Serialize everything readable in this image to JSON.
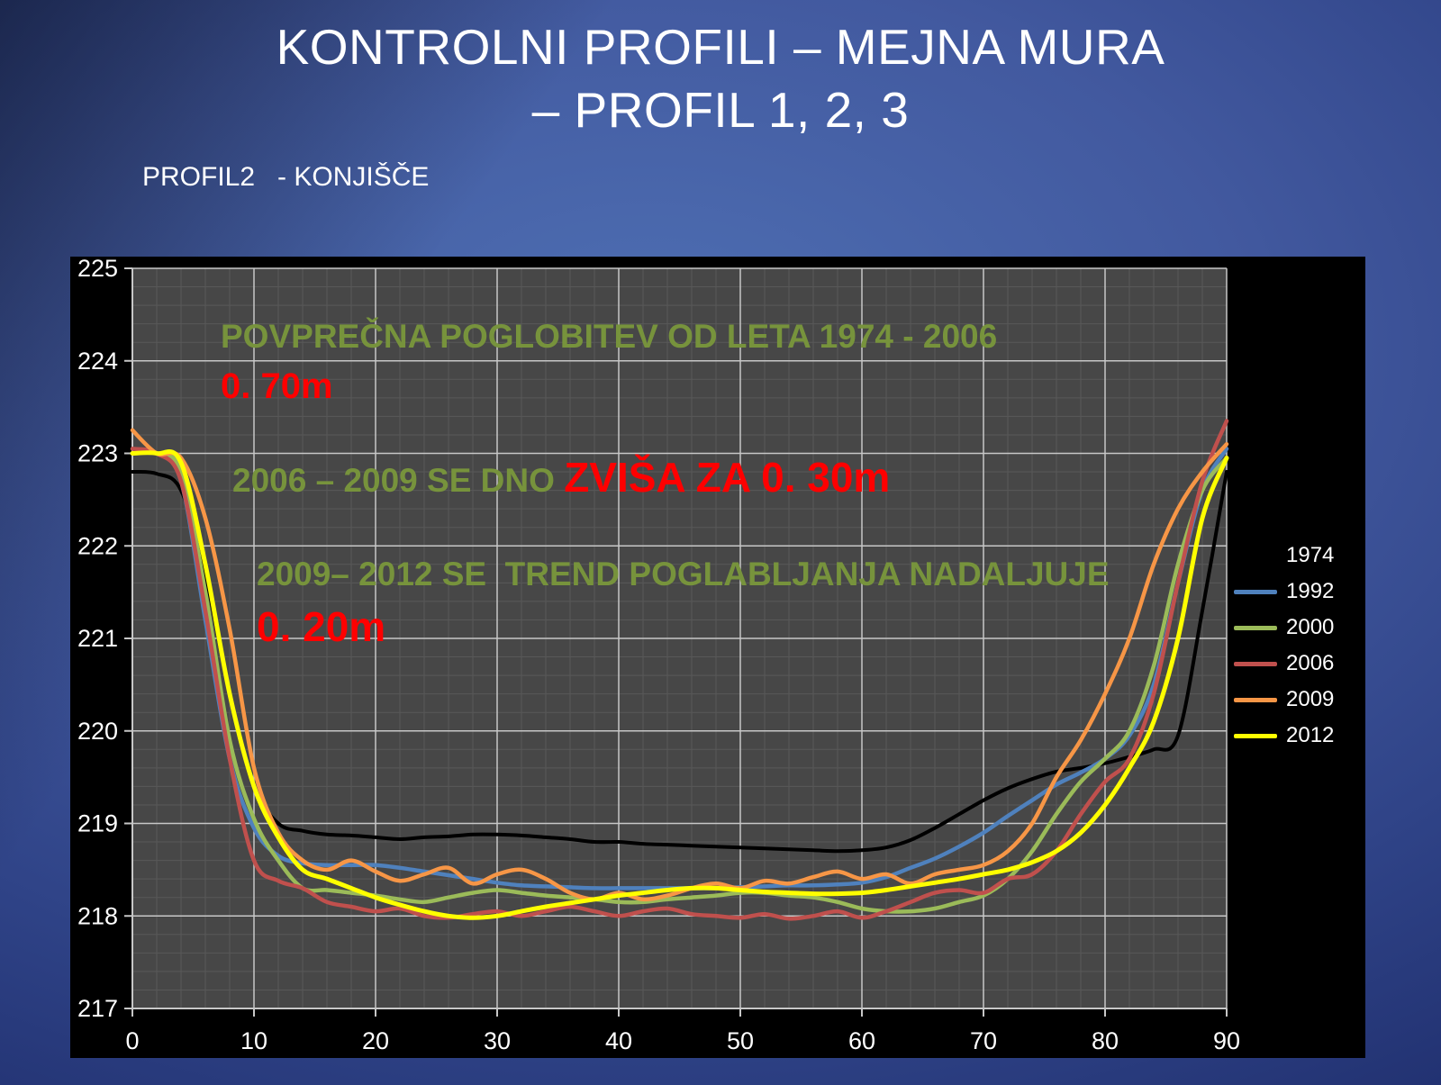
{
  "slide": {
    "title_line1": "KONTROLNI PROFILI – MEJNA MURA",
    "title_line2": "– PROFIL 1, 2, 3",
    "subtitle": "PROFIL2   - KONJIŠČE"
  },
  "colors": {
    "chart_background": "#000000",
    "plot_background": "#474747",
    "major_gridline": "#c7c7c7",
    "minor_gridline": "#585858",
    "axis_text": "#ffffff",
    "annotation_green": "#77933C",
    "annotation_red": "#FF0000"
  },
  "chart_data": {
    "type": "line",
    "title": "",
    "xlabel": "",
    "ylabel": "",
    "xlim": [
      0,
      90
    ],
    "ylim": [
      217,
      225
    ],
    "x_ticks": [
      0,
      10,
      20,
      30,
      40,
      50,
      60,
      70,
      80,
      90
    ],
    "y_ticks": [
      217,
      218,
      219,
      220,
      221,
      222,
      223,
      224,
      225
    ],
    "x_minor_step": 2,
    "y_minor_step": 0.2,
    "grid": "major+minor",
    "legend_position": "right",
    "x": [
      0,
      2,
      4,
      6,
      8,
      10,
      12,
      14,
      16,
      18,
      20,
      22,
      24,
      26,
      28,
      30,
      32,
      34,
      36,
      38,
      40,
      42,
      44,
      46,
      48,
      50,
      52,
      54,
      56,
      58,
      60,
      62,
      64,
      66,
      68,
      70,
      72,
      74,
      76,
      78,
      80,
      82,
      84,
      86,
      88,
      90
    ],
    "series": [
      {
        "name": "1974",
        "color": "#000000",
        "width": 4,
        "values": [
          222.8,
          222.78,
          222.6,
          221.7,
          220.4,
          219.4,
          219.0,
          218.92,
          218.88,
          218.87,
          218.85,
          218.83,
          218.85,
          218.86,
          218.88,
          218.88,
          218.87,
          218.85,
          218.83,
          218.8,
          218.8,
          218.78,
          218.77,
          218.76,
          218.75,
          218.74,
          218.73,
          218.72,
          218.71,
          218.7,
          218.71,
          218.74,
          218.82,
          218.95,
          219.1,
          219.25,
          219.38,
          219.48,
          219.56,
          219.6,
          219.65,
          219.72,
          219.8,
          219.95,
          221.3,
          222.8
        ]
      },
      {
        "name": "1992",
        "color": "#4F81BD",
        "width": 4.5,
        "values": [
          223.0,
          223.0,
          222.7,
          221.2,
          219.7,
          218.95,
          218.65,
          218.57,
          218.55,
          218.55,
          218.55,
          218.52,
          218.48,
          218.44,
          218.4,
          218.36,
          218.33,
          218.32,
          218.31,
          218.3,
          218.3,
          218.3,
          218.3,
          218.3,
          218.3,
          218.31,
          218.32,
          218.33,
          218.33,
          218.34,
          218.36,
          218.42,
          218.52,
          218.62,
          218.75,
          218.9,
          219.08,
          219.25,
          219.42,
          219.55,
          219.7,
          219.95,
          220.5,
          221.6,
          222.6,
          223.05
        ]
      },
      {
        "name": "2000",
        "color": "#9BBB59",
        "width": 4.5,
        "values": [
          223.0,
          223.0,
          222.8,
          221.5,
          219.9,
          219.05,
          218.6,
          218.3,
          218.28,
          218.25,
          218.22,
          218.18,
          218.15,
          218.2,
          218.25,
          218.28,
          218.25,
          218.22,
          218.2,
          218.18,
          218.15,
          218.15,
          218.18,
          218.2,
          218.22,
          218.25,
          218.25,
          218.22,
          218.2,
          218.15,
          218.08,
          218.05,
          218.05,
          218.08,
          218.15,
          218.22,
          218.4,
          218.7,
          219.1,
          219.45,
          219.7,
          220.0,
          220.7,
          221.8,
          222.6,
          222.95
        ]
      },
      {
        "name": "2006",
        "color": "#C0504D",
        "width": 4.5,
        "values": [
          223.05,
          223.0,
          222.7,
          221.3,
          219.7,
          218.6,
          218.38,
          218.3,
          218.15,
          218.1,
          218.05,
          218.08,
          218.0,
          217.98,
          218.02,
          218.05,
          218.0,
          218.05,
          218.1,
          218.05,
          218.0,
          218.05,
          218.08,
          218.02,
          218.0,
          217.98,
          218.02,
          217.97,
          218.0,
          218.05,
          217.98,
          218.05,
          218.15,
          218.25,
          218.28,
          218.25,
          218.4,
          218.45,
          218.7,
          219.1,
          219.45,
          219.7,
          220.4,
          221.6,
          222.7,
          223.35
        ]
      },
      {
        "name": "2009",
        "color": "#F79646",
        "width": 4.5,
        "values": [
          223.25,
          223.0,
          222.95,
          222.3,
          221.1,
          219.6,
          218.9,
          218.6,
          218.5,
          218.6,
          218.48,
          218.38,
          218.45,
          218.52,
          218.35,
          218.45,
          218.5,
          218.4,
          218.25,
          218.18,
          218.25,
          218.18,
          218.22,
          218.3,
          218.35,
          218.3,
          218.38,
          218.35,
          218.42,
          218.48,
          218.4,
          218.45,
          218.35,
          218.45,
          218.5,
          218.55,
          218.7,
          219.0,
          219.5,
          219.9,
          220.4,
          221.0,
          221.8,
          222.4,
          222.8,
          223.1
        ]
      },
      {
        "name": "2012",
        "color": "#FFFF00",
        "width": 5,
        "values": [
          223.0,
          223.0,
          222.9,
          221.8,
          220.4,
          219.4,
          218.85,
          218.5,
          218.4,
          218.3,
          218.2,
          218.12,
          218.05,
          218.0,
          217.98,
          218.0,
          218.05,
          218.1,
          218.14,
          218.18,
          218.22,
          218.25,
          218.28,
          218.3,
          218.3,
          218.28,
          218.26,
          218.25,
          218.24,
          218.24,
          218.25,
          218.28,
          218.32,
          218.36,
          218.4,
          218.45,
          218.5,
          218.58,
          218.7,
          218.9,
          219.2,
          219.6,
          220.1,
          221.0,
          222.3,
          222.95
        ]
      }
    ],
    "annotations": {
      "line1": "POVPREČNA POGLOBITEV OD LETA 1974 - 2006",
      "line2": "0. 70m",
      "line3_green": "2006 – 2009 SE DNO ",
      "line3_red": "ZVIŠA ZA 0. 30m",
      "line4": "2009– 2012 SE  TREND POGLABLJANJA NADALJUJE",
      "line5": "0. 20m"
    }
  }
}
